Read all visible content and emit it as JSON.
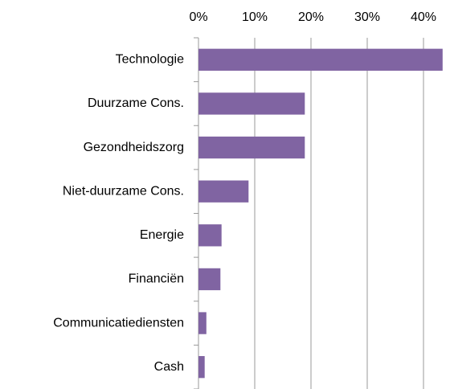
{
  "chart_data": {
    "type": "barh",
    "categories": [
      "Technologie",
      "Duurzame Cons.",
      "Gezondheidszorg",
      "Niet-duurzame Cons.",
      "Energie",
      "Financiën",
      "Communicatiedienst​en",
      "Cash"
    ],
    "values": [
      43.4,
      18.9,
      18.9,
      8.9,
      4.1,
      3.9,
      1.4,
      1.1
    ],
    "color": "#8064a2",
    "xlim": [
      0,
      44
    ],
    "xticks": [
      {
        "value": 0,
        "label": "0%"
      },
      {
        "value": 10,
        "label": "10%"
      },
      {
        "value": 20,
        "label": "20%"
      },
      {
        "value": 30,
        "label": "30%"
      },
      {
        "value": 40,
        "label": "40%"
      }
    ],
    "grid": true
  }
}
